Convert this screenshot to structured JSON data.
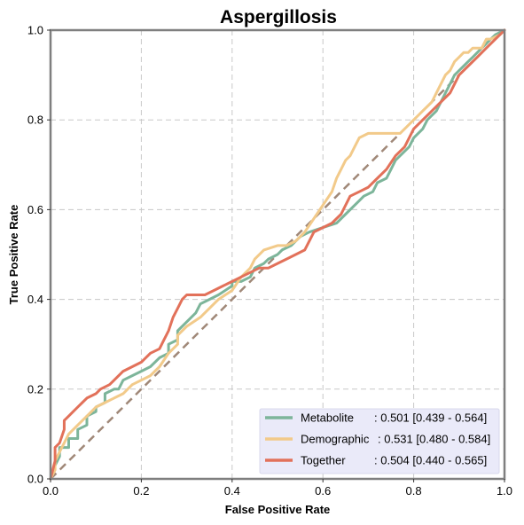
{
  "chart_data": {
    "type": "line",
    "title": "Aspergillosis",
    "xlabel": "False Positive Rate",
    "ylabel": "True Positive Rate",
    "xlim": [
      0,
      1
    ],
    "ylim": [
      0,
      1
    ],
    "xticks": [
      "0.0",
      "0.2",
      "0.4",
      "0.6",
      "0.8",
      "1.0"
    ],
    "yticks": [
      "0.0",
      "0.2",
      "0.4",
      "0.6",
      "0.8",
      "1.0"
    ],
    "grid": true,
    "legend_position": "lower-right",
    "diagonal": {
      "x": [
        0,
        1
      ],
      "y": [
        0,
        1
      ],
      "color": "#a08878",
      "style": "dashed"
    },
    "series": [
      {
        "name": "Metabolite",
        "label": ": 0.501 [0.439 - 0.564]",
        "color": "#7db59a",
        "x": [
          0.0,
          0.01,
          0.02,
          0.02,
          0.04,
          0.04,
          0.06,
          0.06,
          0.08,
          0.08,
          0.1,
          0.1,
          0.12,
          0.12,
          0.14,
          0.15,
          0.16,
          0.18,
          0.2,
          0.22,
          0.24,
          0.26,
          0.26,
          0.28,
          0.28,
          0.3,
          0.32,
          0.33,
          0.35,
          0.37,
          0.4,
          0.4,
          0.42,
          0.44,
          0.45,
          0.47,
          0.48,
          0.5,
          0.51,
          0.53,
          0.55,
          0.57,
          0.6,
          0.63,
          0.65,
          0.68,
          0.69,
          0.71,
          0.72,
          0.74,
          0.75,
          0.76,
          0.78,
          0.79,
          0.8,
          0.82,
          0.83,
          0.84,
          0.85,
          0.86,
          0.87,
          0.88,
          0.89,
          0.9,
          0.91,
          0.92,
          0.93,
          0.94,
          0.95,
          0.96,
          0.97,
          0.98,
          1.0
        ],
        "y": [
          0.0,
          0.03,
          0.05,
          0.07,
          0.07,
          0.09,
          0.09,
          0.11,
          0.12,
          0.14,
          0.15,
          0.16,
          0.17,
          0.19,
          0.2,
          0.2,
          0.22,
          0.23,
          0.24,
          0.25,
          0.27,
          0.28,
          0.3,
          0.31,
          0.33,
          0.35,
          0.37,
          0.39,
          0.4,
          0.41,
          0.43,
          0.44,
          0.44,
          0.45,
          0.47,
          0.48,
          0.49,
          0.5,
          0.51,
          0.52,
          0.54,
          0.55,
          0.56,
          0.57,
          0.59,
          0.62,
          0.63,
          0.64,
          0.66,
          0.67,
          0.69,
          0.71,
          0.73,
          0.74,
          0.76,
          0.78,
          0.8,
          0.81,
          0.82,
          0.84,
          0.86,
          0.88,
          0.9,
          0.91,
          0.92,
          0.93,
          0.94,
          0.95,
          0.96,
          0.97,
          0.98,
          0.99,
          1.0
        ]
      },
      {
        "name": "Demographic",
        "label": ": 0.531 [0.480 - 0.584]",
        "color": "#f2ca8a",
        "x": [
          0.0,
          0.01,
          0.01,
          0.02,
          0.03,
          0.04,
          0.06,
          0.08,
          0.1,
          0.12,
          0.14,
          0.16,
          0.18,
          0.2,
          0.22,
          0.24,
          0.26,
          0.28,
          0.28,
          0.3,
          0.33,
          0.35,
          0.37,
          0.4,
          0.42,
          0.44,
          0.45,
          0.47,
          0.5,
          0.52,
          0.54,
          0.56,
          0.58,
          0.6,
          0.62,
          0.63,
          0.64,
          0.65,
          0.66,
          0.67,
          0.68,
          0.7,
          0.72,
          0.75,
          0.77,
          0.78,
          0.8,
          0.82,
          0.84,
          0.85,
          0.86,
          0.87,
          0.88,
          0.89,
          0.9,
          0.91,
          0.92,
          0.93,
          0.95,
          0.96,
          0.97,
          0.99,
          1.0
        ],
        "y": [
          0.0,
          0.02,
          0.04,
          0.06,
          0.08,
          0.1,
          0.12,
          0.14,
          0.16,
          0.17,
          0.18,
          0.19,
          0.21,
          0.22,
          0.23,
          0.25,
          0.28,
          0.3,
          0.32,
          0.34,
          0.36,
          0.38,
          0.4,
          0.42,
          0.45,
          0.47,
          0.49,
          0.51,
          0.52,
          0.52,
          0.53,
          0.55,
          0.58,
          0.61,
          0.64,
          0.67,
          0.69,
          0.71,
          0.72,
          0.74,
          0.76,
          0.77,
          0.77,
          0.77,
          0.77,
          0.78,
          0.8,
          0.82,
          0.84,
          0.86,
          0.88,
          0.9,
          0.91,
          0.93,
          0.94,
          0.95,
          0.95,
          0.96,
          0.96,
          0.98,
          0.98,
          0.99,
          1.0
        ]
      },
      {
        "name": "Together",
        "label": ": 0.504 [0.440 - 0.565]",
        "color": "#e2715a",
        "x": [
          0.0,
          0.01,
          0.01,
          0.02,
          0.03,
          0.03,
          0.04,
          0.05,
          0.06,
          0.07,
          0.08,
          0.1,
          0.11,
          0.13,
          0.14,
          0.16,
          0.18,
          0.2,
          0.22,
          0.24,
          0.25,
          0.26,
          0.27,
          0.28,
          0.29,
          0.3,
          0.32,
          0.34,
          0.36,
          0.38,
          0.4,
          0.42,
          0.44,
          0.46,
          0.48,
          0.5,
          0.52,
          0.54,
          0.56,
          0.58,
          0.6,
          0.62,
          0.64,
          0.66,
          0.68,
          0.7,
          0.72,
          0.74,
          0.76,
          0.78,
          0.79,
          0.8,
          0.82,
          0.84,
          0.86,
          0.88,
          0.89,
          0.9,
          0.92,
          0.94,
          0.96,
          0.98,
          1.0
        ],
        "y": [
          0.0,
          0.04,
          0.07,
          0.08,
          0.11,
          0.13,
          0.14,
          0.15,
          0.16,
          0.17,
          0.18,
          0.19,
          0.2,
          0.21,
          0.22,
          0.24,
          0.25,
          0.26,
          0.28,
          0.29,
          0.31,
          0.33,
          0.36,
          0.38,
          0.4,
          0.41,
          0.41,
          0.41,
          0.42,
          0.43,
          0.44,
          0.45,
          0.46,
          0.47,
          0.47,
          0.48,
          0.49,
          0.5,
          0.51,
          0.55,
          0.56,
          0.57,
          0.59,
          0.63,
          0.64,
          0.65,
          0.67,
          0.69,
          0.72,
          0.74,
          0.76,
          0.78,
          0.8,
          0.82,
          0.84,
          0.86,
          0.88,
          0.9,
          0.92,
          0.94,
          0.96,
          0.98,
          1.0
        ]
      }
    ]
  }
}
